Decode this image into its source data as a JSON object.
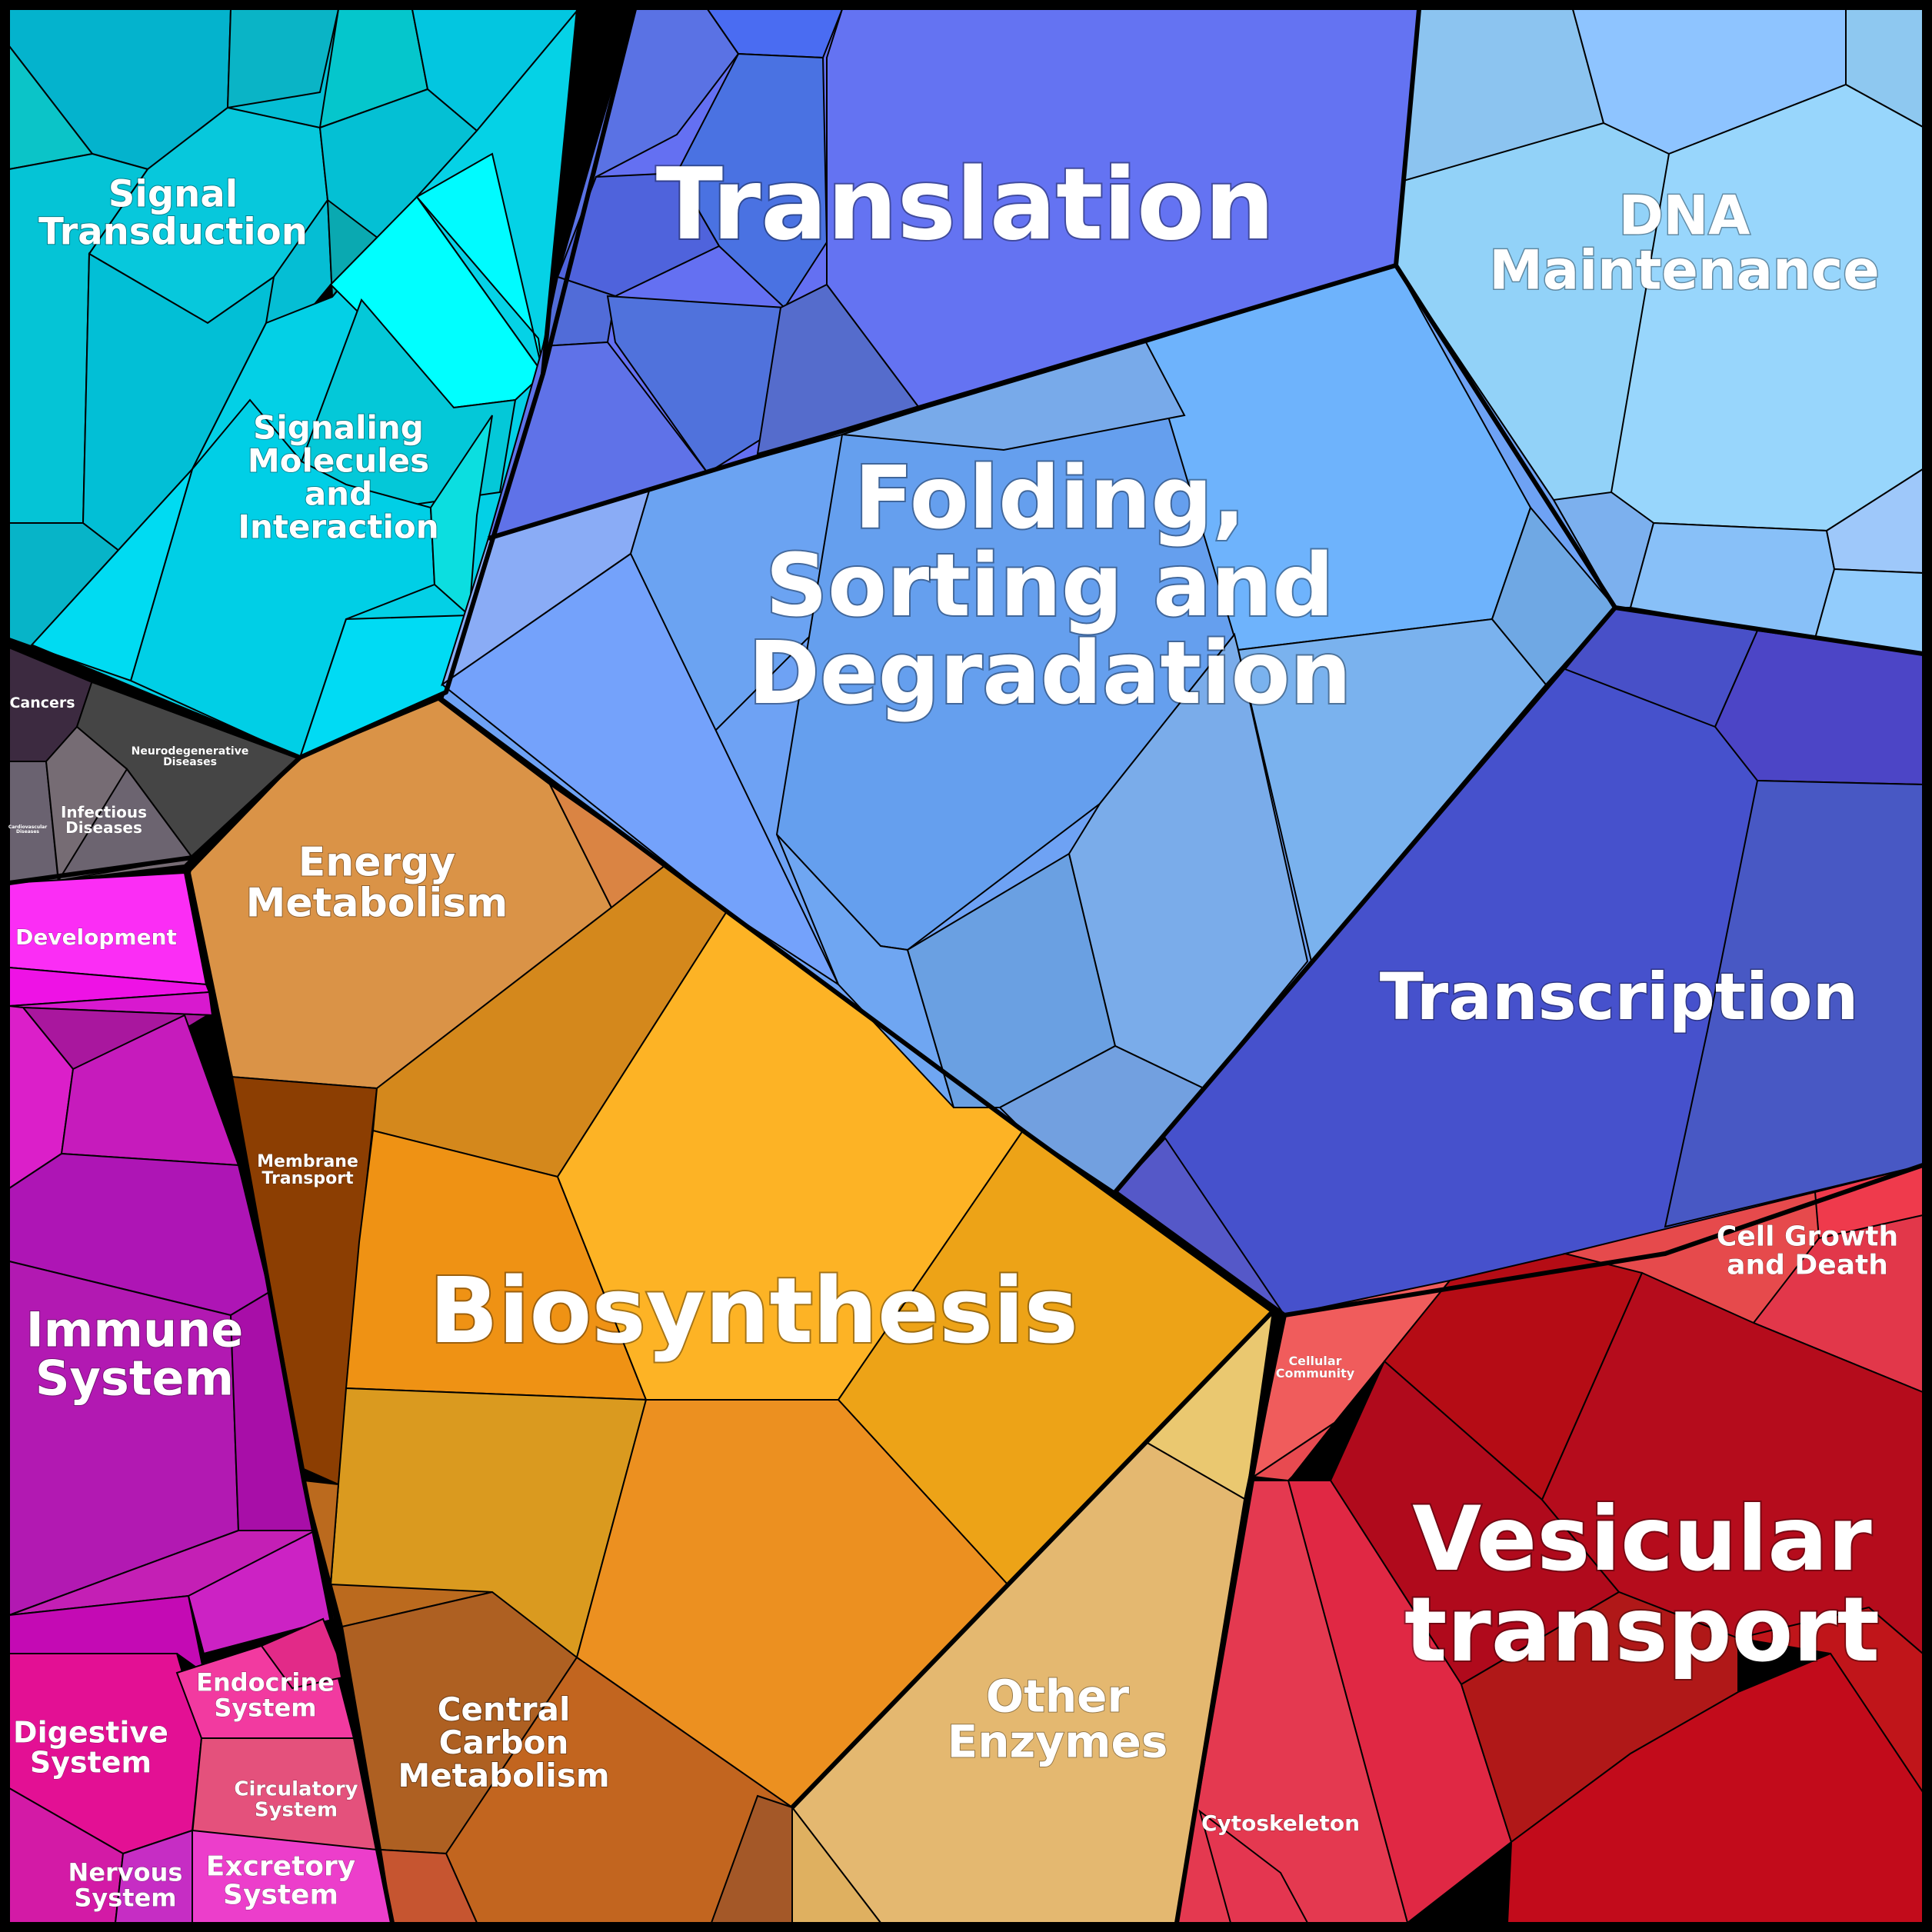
{
  "colors": {
    "signal": "#05c4d6",
    "signaling_molecules": "#00e0f0",
    "diseases": "#4a4a4a",
    "development": "#f03ef0",
    "immune": "#b51ab5",
    "energy": "#da9347",
    "membrane": "#8e3e00",
    "biosynthesis": "#f0a820",
    "central_carbon": "#b35e20",
    "other_enzymes": "#e4b870",
    "translation": "#6070ee",
    "dna": "#90d0f8",
    "folding": "#6ea2f4",
    "transcription": "#4550cc",
    "cell_growth": "#e34050",
    "vesicular": "#b80b1c",
    "cytoskeleton": "#e53048"
  },
  "categories": [
    {
      "id": "translation",
      "label": [
        "Translation"
      ]
    },
    {
      "id": "dna_maintenance",
      "label": [
        "DNA",
        "Maintenance"
      ]
    },
    {
      "id": "folding",
      "label": [
        "Folding,",
        "Sorting and",
        "Degradation"
      ]
    },
    {
      "id": "transcription",
      "label": [
        "Transcription"
      ]
    },
    {
      "id": "biosynthesis",
      "label": [
        "Biosynthesis"
      ]
    },
    {
      "id": "vesicular",
      "label": [
        "Vesicular",
        "transport"
      ]
    },
    {
      "id": "signal",
      "label": [
        "Signal",
        "Transduction"
      ]
    },
    {
      "id": "signaling_molecules",
      "label": [
        "Signaling",
        "Molecules",
        "and",
        "Interaction"
      ]
    },
    {
      "id": "energy",
      "label": [
        "Energy",
        "Metabolism"
      ]
    },
    {
      "id": "membrane",
      "label": [
        "Membrane",
        "Transport"
      ]
    },
    {
      "id": "central_carbon",
      "label": [
        "Central",
        "Carbon",
        "Metabolism"
      ]
    },
    {
      "id": "other_enzymes",
      "label": [
        "Other",
        "Enzymes"
      ]
    },
    {
      "id": "immune",
      "label": [
        "Immune",
        "System"
      ]
    },
    {
      "id": "development",
      "label": [
        "Development"
      ]
    },
    {
      "id": "digestive",
      "label": [
        "Digestive",
        "System"
      ]
    },
    {
      "id": "endocrine",
      "label": [
        "Endocrine",
        "System"
      ]
    },
    {
      "id": "circulatory",
      "label": [
        "Circulatory",
        "System"
      ]
    },
    {
      "id": "excretory",
      "label": [
        "Excretory",
        "System"
      ]
    },
    {
      "id": "nervous",
      "label": [
        "Nervous",
        "System"
      ]
    },
    {
      "id": "cell_growth",
      "label": [
        "Cell Growth",
        "and Death"
      ]
    },
    {
      "id": "cellular_community",
      "label": [
        "Cellular",
        "Community"
      ]
    },
    {
      "id": "cytoskeleton",
      "label": [
        "Cytoskeleton"
      ]
    },
    {
      "id": "cancers",
      "label": [
        "Cancers"
      ]
    },
    {
      "id": "neurodegenerative",
      "label": [
        "Neurodegenerative",
        "Diseases"
      ]
    },
    {
      "id": "infectious",
      "label": [
        "Infectious",
        "Diseases"
      ]
    },
    {
      "id": "cardiovascular",
      "label": [
        "Cardiovascular",
        "Diseases"
      ]
    }
  ]
}
